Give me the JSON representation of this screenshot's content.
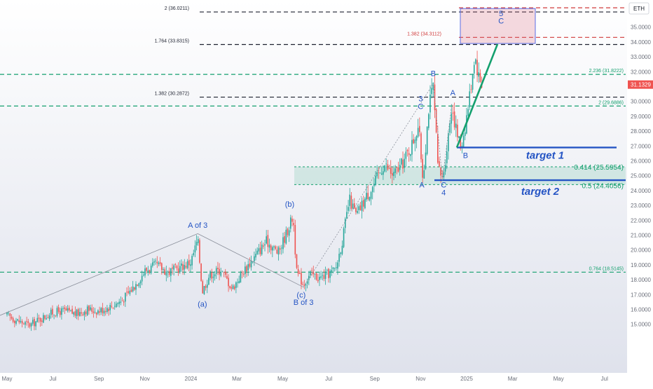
{
  "chart_data": {
    "type": "candlestick",
    "symbol": "ETH",
    "current_price": "31.1329",
    "y_ticks": [
      "35.0000",
      "34.0000",
      "33.0000",
      "32.0000",
      "31.0000",
      "30.0000",
      "29.0000",
      "28.0000",
      "27.0000",
      "26.0000",
      "25.0000",
      "24.0000",
      "23.0000",
      "22.0000",
      "21.0000",
      "20.0000",
      "19.0000",
      "18.0000",
      "17.0000",
      "16.0000",
      "15.0000"
    ],
    "ylim": [
      14.75,
      36.4
    ],
    "x_ticks": [
      {
        "label": "May",
        "t": 0.0
      },
      {
        "label": "Jul",
        "t": 2.0
      },
      {
        "label": "Sep",
        "t": 4.0
      },
      {
        "label": "Nov",
        "t": 6.0
      },
      {
        "label": "2024",
        "t": 8.0
      },
      {
        "label": "Mar",
        "t": 10.0
      },
      {
        "label": "May",
        "t": 12.0
      },
      {
        "label": "Jul",
        "t": 14.0
      },
      {
        "label": "Sep",
        "t": 16.0
      },
      {
        "label": "Nov",
        "t": 18.0
      },
      {
        "label": "2025",
        "t": 20.0
      },
      {
        "label": "Mar",
        "t": 22.0
      },
      {
        "label": "May",
        "t": 24.0
      },
      {
        "label": "Jul",
        "t": 26.0
      }
    ],
    "price_path": [
      [
        0.0,
        15.6
      ],
      [
        0.5,
        15.2
      ],
      [
        1.0,
        14.95
      ],
      [
        1.5,
        15.4
      ],
      [
        2.0,
        15.8
      ],
      [
        2.5,
        15.9
      ],
      [
        3.0,
        15.7
      ],
      [
        3.5,
        16.0
      ],
      [
        4.0,
        15.9
      ],
      [
        4.5,
        16.2
      ],
      [
        5.0,
        16.6
      ],
      [
        5.5,
        17.5
      ],
      [
        6.0,
        18.6
      ],
      [
        6.5,
        19.0
      ],
      [
        7.0,
        18.5
      ],
      [
        7.5,
        18.8
      ],
      [
        8.0,
        19.2
      ],
      [
        8.3,
        20.7
      ],
      [
        8.5,
        17.2
      ],
      [
        8.8,
        18.3
      ],
      [
        9.3,
        18.7
      ],
      [
        9.8,
        17.4
      ],
      [
        10.3,
        18.6
      ],
      [
        10.8,
        19.6
      ],
      [
        11.3,
        20.6
      ],
      [
        11.8,
        19.8
      ],
      [
        12.2,
        21.3
      ],
      [
        12.45,
        22.3
      ],
      [
        12.6,
        18.5
      ],
      [
        12.9,
        17.7
      ],
      [
        13.2,
        18.4
      ],
      [
        13.6,
        18.1
      ],
      [
        14.0,
        18.4
      ],
      [
        14.3,
        18.7
      ],
      [
        14.6,
        20.7
      ],
      [
        14.9,
        23.4
      ],
      [
        15.2,
        22.3
      ],
      [
        15.6,
        23.5
      ],
      [
        16.0,
        24.5
      ],
      [
        16.4,
        25.8
      ],
      [
        16.8,
        25.0
      ],
      [
        17.2,
        25.8
      ],
      [
        17.6,
        27.0
      ],
      [
        17.9,
        28.4
      ],
      [
        18.1,
        24.8
      ],
      [
        18.35,
        29.6
      ],
      [
        18.55,
        31.0
      ],
      [
        18.75,
        25.5
      ],
      [
        18.95,
        24.8
      ],
      [
        19.15,
        27.0
      ],
      [
        19.35,
        29.8
      ],
      [
        19.55,
        28.0
      ],
      [
        19.75,
        26.9
      ],
      [
        19.95,
        28.5
      ],
      [
        20.15,
        30.6
      ],
      [
        20.35,
        33.2
      ],
      [
        20.55,
        31.5
      ],
      [
        20.7,
        31.13
      ]
    ],
    "horizontal_levels": [
      {
        "label": "2 (36.0211)",
        "value": 36.02,
        "color": "#1e2230",
        "side": "left"
      },
      {
        "label": "1.764 (33.8315)",
        "value": 33.83,
        "color": "#1e2230",
        "side": "left"
      },
      {
        "label": "1.382 (34.3112)",
        "value": 34.31,
        "color": "#d03a3a",
        "side": "mid"
      },
      {
        "label": "2.236 (31.8222)",
        "value": 31.82,
        "color": "#14a06e",
        "side": "right"
      },
      {
        "label": "1.382 (30.2872)",
        "value": 30.29,
        "color": "#1e2230",
        "side": "left"
      },
      {
        "label": "2 (29.6886)",
        "value": 29.69,
        "color": "#14a06e",
        "side": "right"
      },
      {
        "label": "0.764 (18.5145)",
        "value": 18.51,
        "color": "#14a06e",
        "side": "right"
      }
    ],
    "extra_red_level": 36.3,
    "zone": {
      "top": 25.6,
      "bottom": 24.4,
      "labels": [
        "0.414 (25.5954)",
        "0.5 (24.4056)"
      ],
      "color": "#14a06e"
    },
    "targets": [
      {
        "label": "target 1",
        "value": 26.9
      },
      {
        "label": "target 2",
        "value": 24.7
      }
    ],
    "box": {
      "top": 36.25,
      "bottom": 33.9
    },
    "wave_labels": [
      {
        "text": "A of 3",
        "t": 8.3,
        "v": 21.5
      },
      {
        "text": "(a)",
        "t": 8.5,
        "v": 16.2
      },
      {
        "text": "(b)",
        "t": 12.3,
        "v": 22.9
      },
      {
        "text": "(c)",
        "t": 12.8,
        "v": 16.8
      },
      {
        "text": "B of 3",
        "t": 12.9,
        "v": 16.3
      },
      {
        "text": "3",
        "t": 18.0,
        "v": 30.0
      },
      {
        "text": "C",
        "t": 18.0,
        "v": 29.5
      },
      {
        "text": "B",
        "t": 18.55,
        "v": 31.7
      },
      {
        "text": "A",
        "t": 18.05,
        "v": 24.2
      },
      {
        "text": "A",
        "t": 19.4,
        "v": 30.4
      },
      {
        "text": "C",
        "t": 19.0,
        "v": 24.2
      },
      {
        "text": "4",
        "t": 19.0,
        "v": 23.7
      },
      {
        "text": "B",
        "t": 19.95,
        "v": 26.2
      },
      {
        "text": "5",
        "t": 21.5,
        "v": 35.75
      },
      {
        "text": "C",
        "t": 21.5,
        "v": 35.25
      }
    ]
  }
}
